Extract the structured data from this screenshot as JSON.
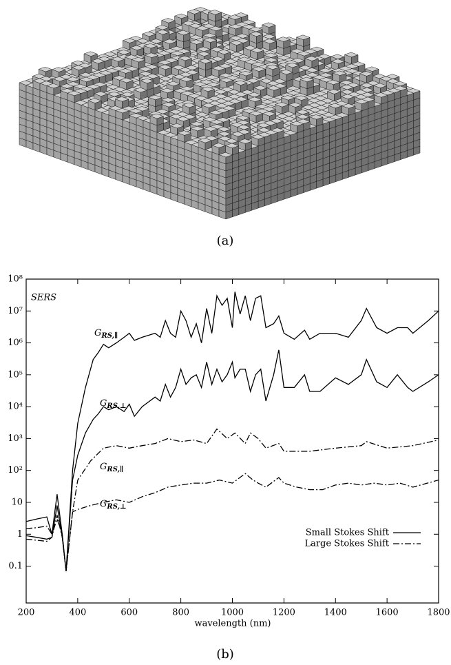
{
  "chart_data": {
    "type": "line",
    "caption_a": "(a)",
    "caption_b": "(b)",
    "annotation": "SERS",
    "xlabel": "wavelength (nm)",
    "xlim": [
      200,
      1800
    ],
    "xticks": [
      200,
      400,
      600,
      800,
      1000,
      1200,
      1400,
      1600,
      1800
    ],
    "ylim": [
      0.007,
      100000000
    ],
    "log_y": true,
    "yticks": [
      0.1,
      1,
      10,
      {
        "value": 100,
        "label": "10²"
      },
      {
        "value": 1000,
        "label": "10³"
      },
      {
        "value": 10000,
        "label": "10⁴"
      },
      {
        "value": 100000,
        "label": "10⁵"
      },
      {
        "value": 1000000,
        "label": "10⁶"
      },
      {
        "value": 10000000,
        "label": "10⁷"
      },
      {
        "value": 100000000,
        "label": "10⁸"
      }
    ],
    "legend_position": "lower right",
    "legend": [
      {
        "label": "Small Stokes Shift",
        "dash": "solid"
      },
      {
        "label": "Large Stokes Shift",
        "dash": "dashdot"
      }
    ],
    "series": [
      {
        "name": "G",
        "subscript": "RS,∥",
        "dash": "solid",
        "color": "#000000",
        "x": [
          200,
          240,
          280,
          300,
          320,
          340,
          355,
          380,
          400,
          430,
          460,
          480,
          500,
          520,
          550,
          580,
          600,
          620,
          650,
          700,
          720,
          740,
          760,
          780,
          800,
          820,
          840,
          860,
          880,
          900,
          920,
          940,
          960,
          980,
          1000,
          1010,
          1030,
          1050,
          1070,
          1090,
          1110,
          1130,
          1160,
          1180,
          1200,
          1240,
          1280,
          1300,
          1340,
          1400,
          1450,
          1500,
          1520,
          1560,
          1600,
          1640,
          1680,
          1700,
          1760,
          1800
        ],
        "values": [
          2.5,
          3,
          3.5,
          1,
          18,
          1,
          0.07,
          100,
          3000,
          40000,
          300000,
          500000,
          900000,
          700000,
          1000000,
          1500000,
          2000000,
          1200000,
          1500000,
          2000000,
          1500000,
          5000000,
          2000000,
          1500000,
          10000000,
          5000000,
          1500000,
          4000000,
          1000000,
          12000000,
          2000000,
          30000000,
          15000000,
          25000000,
          3000000,
          40000000,
          8000000,
          30000000,
          5000000,
          25000000,
          30000000,
          3000000,
          4000000,
          7000000,
          2000000,
          1300000,
          2500000,
          1300000,
          2000000,
          2000000,
          1500000,
          5000000,
          12000000,
          3000000,
          2000000,
          3000000,
          3000000,
          2000000,
          5000000,
          10000000
        ]
      },
      {
        "name": "G",
        "subscript": "RS,⊥",
        "dash": "solid",
        "color": "#000000",
        "x": [
          200,
          240,
          280,
          300,
          320,
          340,
          355,
          380,
          400,
          430,
          460,
          480,
          500,
          520,
          550,
          580,
          600,
          620,
          650,
          700,
          720,
          740,
          760,
          780,
          800,
          820,
          840,
          860,
          880,
          900,
          920,
          940,
          960,
          980,
          1000,
          1010,
          1030,
          1050,
          1070,
          1090,
          1110,
          1130,
          1160,
          1180,
          1200,
          1240,
          1280,
          1300,
          1340,
          1400,
          1450,
          1500,
          1520,
          1560,
          1600,
          1640,
          1680,
          1700,
          1760,
          1800
        ],
        "values": [
          0.9,
          0.8,
          0.7,
          0.8,
          8,
          0.8,
          0.07,
          50,
          300,
          1500,
          4000,
          6000,
          10000,
          8000,
          10000,
          7000,
          12000,
          5000,
          10000,
          20000,
          15000,
          50000,
          20000,
          40000,
          150000,
          50000,
          80000,
          100000,
          40000,
          250000,
          50000,
          150000,
          60000,
          100000,
          250000,
          80000,
          150000,
          150000,
          30000,
          100000,
          150000,
          15000,
          100000,
          600000,
          40000,
          40000,
          100000,
          30000,
          30000,
          80000,
          50000,
          100000,
          300000,
          60000,
          40000,
          100000,
          40000,
          30000,
          60000,
          100000
        ]
      },
      {
        "name": "G",
        "subscript": "RS,∥",
        "dash": "dashdot",
        "color": "#000000",
        "x": [
          200,
          240,
          280,
          300,
          320,
          340,
          355,
          380,
          400,
          450,
          500,
          550,
          600,
          650,
          700,
          750,
          800,
          850,
          900,
          940,
          980,
          1010,
          1050,
          1070,
          1100,
          1130,
          1180,
          1200,
          1300,
          1400,
          1500,
          1520,
          1600,
          1700,
          1800
        ],
        "values": [
          1.5,
          1.6,
          1.8,
          1,
          3,
          1,
          0.07,
          5,
          50,
          200,
          500,
          600,
          500,
          600,
          700,
          1000,
          800,
          900,
          700,
          2000,
          1000,
          1500,
          700,
          1500,
          1000,
          500,
          700,
          400,
          400,
          500,
          600,
          800,
          500,
          600,
          900
        ]
      },
      {
        "name": "G",
        "subscript": "RS,⊥",
        "dash": "dashdot",
        "color": "#000000",
        "x": [
          200,
          240,
          280,
          300,
          320,
          340,
          355,
          380,
          400,
          450,
          500,
          550,
          600,
          650,
          700,
          750,
          800,
          850,
          900,
          950,
          1000,
          1050,
          1080,
          1100,
          1130,
          1180,
          1200,
          1250,
          1300,
          1350,
          1400,
          1450,
          1500,
          1550,
          1600,
          1650,
          1700,
          1800
        ],
        "values": [
          0.7,
          0.65,
          0.6,
          0.8,
          4,
          0.8,
          0.07,
          5,
          6,
          8,
          10,
          12,
          10,
          15,
          20,
          30,
          35,
          40,
          40,
          50,
          40,
          80,
          50,
          40,
          30,
          60,
          40,
          30,
          25,
          25,
          35,
          40,
          35,
          40,
          35,
          40,
          30,
          50
        ]
      }
    ]
  }
}
